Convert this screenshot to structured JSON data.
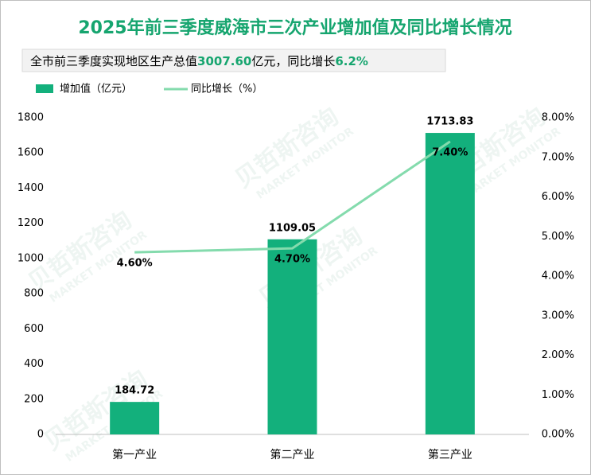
{
  "chart_data": {
    "type": "bar-line",
    "title": "2025年前三季度威海市三次产业增加值及同比增长情况",
    "subtitle_parts": [
      "全市前三季度实现地区生产总值",
      "3007.60",
      "亿元，同比增长",
      "6.2%"
    ],
    "watermark": {
      "name": "贝哲斯咨询",
      "tagline": "MARKET MONITOR"
    },
    "categories": [
      "第一产业",
      "第二产业",
      "第三产业"
    ],
    "series": [
      {
        "name": "增加值（亿元）",
        "color": "#13b07c",
        "type": "bar",
        "values": [
          184.72,
          1109.05,
          1713.83
        ]
      },
      {
        "name": "同比增长（%）",
        "color": "#84dbad",
        "type": "line",
        "axis": "y2",
        "values": [
          4.6,
          4.7,
          7.4
        ],
        "value_labels": [
          "4.60%",
          "4.70%",
          "7.40%"
        ]
      }
    ],
    "ylim": [
      0,
      1800
    ],
    "yticks": [
      0,
      200,
      400,
      600,
      800,
      1000,
      1200,
      1400,
      1600,
      1800
    ],
    "y2lim": [
      0,
      8
    ],
    "y2ticks": [
      {
        "value": 0,
        "label": "0.00%"
      },
      {
        "value": 1,
        "label": "1.00%"
      },
      {
        "value": 2,
        "label": "2.00%"
      },
      {
        "value": 3,
        "label": "3.00%"
      },
      {
        "value": 4,
        "label": "4.00%"
      },
      {
        "value": 5,
        "label": "5.00%"
      },
      {
        "value": 6,
        "label": "6.00%"
      },
      {
        "value": 7,
        "label": "7.00%"
      },
      {
        "value": 8,
        "label": "8.00%"
      }
    ],
    "grid": false
  }
}
